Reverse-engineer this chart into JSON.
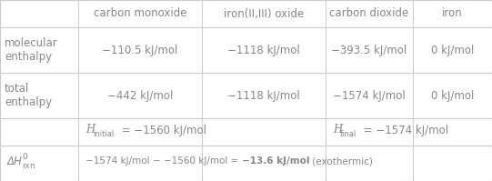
{
  "col_headers": [
    "",
    "carbon monoxide",
    "iron(II,III) oxide",
    "carbon dioxide",
    "iron"
  ],
  "row1_label": "molecular\nenthalpy",
  "row1_values": [
    "−110.5 kJ/mol",
    "−1118 kJ/mol",
    "−393.5 kJ/mol",
    "0 kJ/mol"
  ],
  "row2_label": "total\nenthalpy",
  "row2_values": [
    "−442 kJ/mol",
    "−1118 kJ/mol",
    "−1574 kJ/mol",
    "0 kJ/mol"
  ],
  "bg_color": "#ffffff",
  "text_color": "#888888",
  "border_color": "#cccccc",
  "figsize": [
    5.41,
    1.99
  ],
  "dpi": 100
}
